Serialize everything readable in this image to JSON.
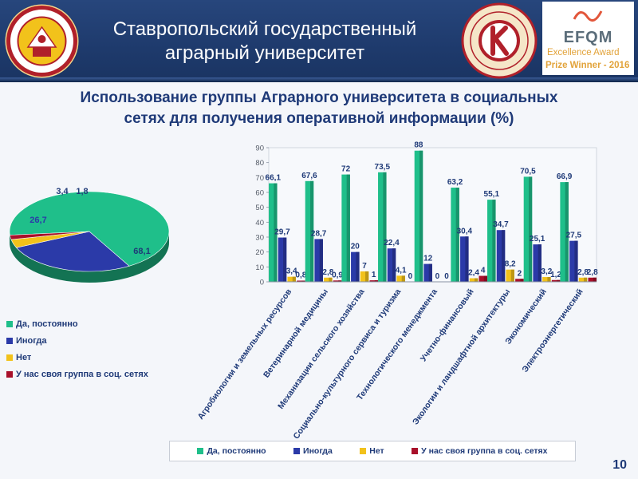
{
  "header": {
    "university_line1": "Ставропольский государственный",
    "university_line2": "аграрный университет",
    "logo_left": "university-seal-logo",
    "logo_mid": "quality-award-medal-logo",
    "efqm": {
      "name": "EFQM",
      "line1": "Excellence Award",
      "line2": "Prize Winner - 2016"
    }
  },
  "slide": {
    "title_line1": "Использование группы Аграрного университета в социальных",
    "title_line2": "сетях для получения оперативной информации (%)",
    "page_number": "10"
  },
  "colors": {
    "yes_always": "#1fbf8a",
    "sometimes": "#2b3aa8",
    "no": "#f2c21b",
    "own_group": "#a8102a"
  },
  "chart_data": [
    {
      "type": "pie",
      "title": "",
      "slices": [
        {
          "name": "Да, постоянно",
          "value": 68.1,
          "label": "68,1"
        },
        {
          "name": "Иногда",
          "value": 26.7,
          "label": "26,7"
        },
        {
          "name": "Нет",
          "value": 3.4,
          "label": "3,4"
        },
        {
          "name": "У нас своя группа в соц. сетях",
          "value": 1.8,
          "label": "1,8"
        }
      ],
      "legend_position": "bottom-left"
    },
    {
      "type": "bar",
      "title": "",
      "xlabel": "",
      "ylabel": "",
      "ylim": [
        0,
        90
      ],
      "yticks": [
        0,
        10,
        20,
        30,
        40,
        50,
        60,
        70,
        80,
        90
      ],
      "grid": false,
      "legend_position": "bottom",
      "categories": [
        "Агробиологии и земельных ресурсов",
        "Ветеринарной медицины",
        "Механизации сельского хозяйства",
        "Социально-культурного сервиса и туризма",
        "Технологического менеджмента",
        "Учетно-финансовый",
        "Экологии и ландшафтной архитектуры",
        "Экономический",
        "Электроэнергетический"
      ],
      "series": [
        {
          "name": "Да, постоянно",
          "values": [
            66.1,
            67.6,
            72,
            73.5,
            88,
            63.2,
            55.1,
            70.5,
            66.9
          ],
          "labels": [
            "66,1",
            "67,6",
            "72",
            "73,5",
            "88",
            "63,2",
            "55,1",
            "70,5",
            "66,9"
          ]
        },
        {
          "name": "Иногда",
          "values": [
            29.7,
            28.7,
            20,
            22.4,
            12,
            30.4,
            34.7,
            25.1,
            27.5
          ],
          "labels": [
            "29,7",
            "28,7",
            "20",
            "22,4",
            "12",
            "30,4",
            "34,7",
            "25,1",
            "27,5"
          ]
        },
        {
          "name": "Нет",
          "values": [
            3.4,
            2.8,
            7,
            4.1,
            0,
            2.4,
            8.2,
            3.2,
            2.8
          ],
          "labels": [
            "3,4",
            "2,8",
            "7",
            "4,1",
            "0",
            "2,4",
            "8,2",
            "3,2",
            "2,8"
          ]
        },
        {
          "name": "У нас своя группа в соц. сетях",
          "values": [
            0.8,
            0.9,
            1,
            0,
            0,
            4,
            2,
            1.2,
            2.8
          ],
          "labels": [
            "0,8",
            "0,9",
            "1",
            "0",
            "0",
            "4",
            "2",
            "1,2",
            "2,8"
          ]
        }
      ]
    }
  ]
}
